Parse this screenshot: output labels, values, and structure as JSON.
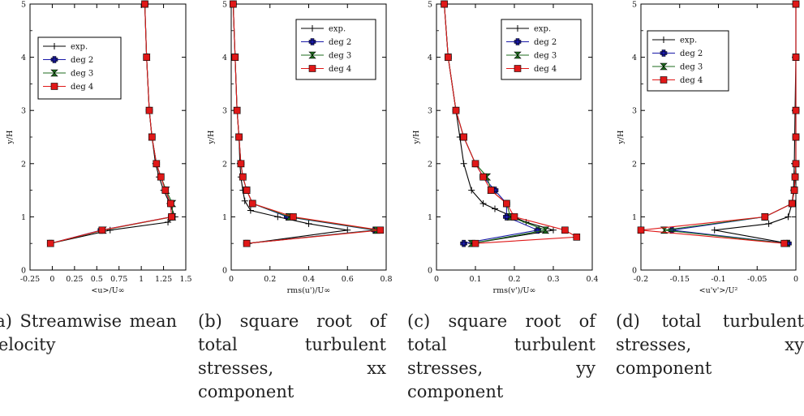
{
  "colors": {
    "exp": "#000000",
    "deg 2": "#1a1aa8",
    "deg 3": "#1c6b1c",
    "deg 4": "#e01818"
  },
  "markers": {
    "exp": "plus",
    "deg 2": "bluecross",
    "deg 3": "hourglass",
    "deg 4": "square"
  },
  "captions": [
    "(a) Streamwise mean velocity",
    "(b) square root of total turbulent stresses, xx component",
    "(c) square root of total turbulent stresses, yy component",
    "(d) total turbulent stresses, xy component"
  ],
  "chart_data": [
    {
      "type": "line",
      "xlabel": "<u>/U∞",
      "ylabel": "y/H",
      "xlim": [
        -0.25,
        1.5
      ],
      "ylim": [
        0,
        5
      ],
      "xticks": [
        "-0.25",
        "0",
        "0.25",
        "0.5",
        "0.75",
        "1",
        "1.25",
        "1.5"
      ],
      "yticks": [
        "0",
        "1",
        "2",
        "3",
        "4",
        "5"
      ],
      "legend": {
        "position": "top-left",
        "entries": [
          "exp.",
          "deg 2",
          "deg 3",
          "deg 4"
        ]
      },
      "series": [
        {
          "name": "exp.",
          "points": [
            [
              -0.02,
              0.5
            ],
            [
              0.65,
              0.75
            ],
            [
              1.3,
              0.9
            ],
            [
              1.38,
              1.0
            ],
            [
              1.32,
              1.25
            ],
            [
              1.25,
              1.5
            ],
            [
              1.2,
              1.75
            ],
            [
              1.16,
              2.0
            ],
            [
              1.12,
              2.5
            ],
            [
              1.09,
              3.0
            ],
            [
              1.06,
              4.0
            ],
            [
              1.04,
              5.0
            ]
          ]
        },
        {
          "name": "deg 2",
          "points": [
            [
              -0.02,
              0.5
            ],
            [
              0.55,
              0.75
            ],
            [
              1.34,
              1.0
            ],
            [
              1.33,
              1.25
            ],
            [
              1.27,
              1.5
            ],
            [
              1.22,
              1.75
            ],
            [
              1.17,
              2.0
            ],
            [
              1.12,
              2.5
            ],
            [
              1.09,
              3.0
            ],
            [
              1.06,
              4.0
            ],
            [
              1.04,
              5.0
            ]
          ]
        },
        {
          "name": "deg 3",
          "points": [
            [
              -0.02,
              0.5
            ],
            [
              0.57,
              0.75
            ],
            [
              1.35,
              1.0
            ],
            [
              1.35,
              1.25
            ],
            [
              1.28,
              1.5
            ],
            [
              1.22,
              1.75
            ],
            [
              1.17,
              2.0
            ],
            [
              1.12,
              2.5
            ],
            [
              1.09,
              3.0
            ],
            [
              1.06,
              4.0
            ],
            [
              1.04,
              5.0
            ]
          ]
        },
        {
          "name": "deg 4",
          "points": [
            [
              -0.02,
              0.5
            ],
            [
              0.56,
              0.75
            ],
            [
              1.34,
              1.0
            ],
            [
              1.33,
              1.25
            ],
            [
              1.27,
              1.5
            ],
            [
              1.22,
              1.75
            ],
            [
              1.17,
              2.0
            ],
            [
              1.12,
              2.5
            ],
            [
              1.09,
              3.0
            ],
            [
              1.06,
              4.0
            ],
            [
              1.04,
              5.0
            ]
          ]
        }
      ]
    },
    {
      "type": "line",
      "xlabel": "rms(u')/U∞",
      "ylabel": "y/H",
      "xlim": [
        0,
        0.8
      ],
      "ylim": [
        0,
        5
      ],
      "xticks": [
        "0",
        "0.2",
        "0.4",
        "0.6",
        "0.8"
      ],
      "yticks": [
        "0",
        "1",
        "2",
        "3",
        "4",
        "5"
      ],
      "legend": {
        "position": "top-right",
        "entries": [
          "exp.",
          "deg 2",
          "deg 3",
          "deg 4"
        ]
      },
      "series": [
        {
          "name": "exp.",
          "points": [
            [
              0.09,
              0.5
            ],
            [
              0.6,
              0.75
            ],
            [
              0.4,
              0.87
            ],
            [
              0.24,
              1.0
            ],
            [
              0.1,
              1.12
            ],
            [
              0.07,
              1.3
            ],
            [
              0.06,
              1.5
            ],
            [
              0.05,
              1.75
            ],
            [
              0.045,
              2.0
            ],
            [
              0.04,
              2.5
            ],
            [
              0.03,
              3.0
            ],
            [
              0.02,
              4.0
            ],
            [
              0.01,
              5.0
            ]
          ]
        },
        {
          "name": "deg 2",
          "points": [
            [
              0.08,
              0.5
            ],
            [
              0.74,
              0.75
            ],
            [
              0.29,
              1.0
            ],
            [
              0.11,
              1.25
            ],
            [
              0.08,
              1.5
            ],
            [
              0.06,
              1.75
            ],
            [
              0.05,
              2.0
            ],
            [
              0.04,
              2.5
            ],
            [
              0.03,
              3.0
            ],
            [
              0.02,
              4.0
            ],
            [
              0.01,
              5.0
            ]
          ]
        },
        {
          "name": "deg 3",
          "points": [
            [
              0.08,
              0.5
            ],
            [
              0.75,
              0.75
            ],
            [
              0.3,
              1.0
            ],
            [
              0.11,
              1.25
            ],
            [
              0.08,
              1.5
            ],
            [
              0.06,
              1.75
            ],
            [
              0.05,
              2.0
            ],
            [
              0.04,
              2.5
            ],
            [
              0.03,
              3.0
            ],
            [
              0.02,
              4.0
            ],
            [
              0.01,
              5.0
            ]
          ]
        },
        {
          "name": "deg 4",
          "points": [
            [
              0.08,
              0.5
            ],
            [
              0.77,
              0.75
            ],
            [
              0.32,
              1.0
            ],
            [
              0.11,
              1.25
            ],
            [
              0.08,
              1.5
            ],
            [
              0.06,
              1.75
            ],
            [
              0.05,
              2.0
            ],
            [
              0.04,
              2.5
            ],
            [
              0.03,
              3.0
            ],
            [
              0.02,
              4.0
            ],
            [
              0.01,
              5.0
            ]
          ]
        }
      ]
    },
    {
      "type": "line",
      "xlabel": "rms(v')/U∞",
      "ylabel": "y/H",
      "xlim": [
        0,
        0.4
      ],
      "ylim": [
        0,
        5
      ],
      "xticks": [
        "0",
        "0.1",
        "0.2",
        "0.3",
        "0.4"
      ],
      "yticks": [
        "0",
        "1",
        "2",
        "3",
        "4",
        "5"
      ],
      "legend": {
        "position": "top-right",
        "entries": [
          "exp.",
          "deg 2",
          "deg 3",
          "deg 4"
        ]
      },
      "series": [
        {
          "name": "exp.",
          "points": [
            [
              0.09,
              0.5
            ],
            [
              0.3,
              0.75
            ],
            [
              0.23,
              0.9
            ],
            [
              0.15,
              1.15
            ],
            [
              0.12,
              1.25
            ],
            [
              0.09,
              1.5
            ],
            [
              0.07,
              2.0
            ],
            [
              0.06,
              2.5
            ],
            [
              0.05,
              3.0
            ],
            [
              0.03,
              4.0
            ],
            [
              0.02,
              5.0
            ]
          ]
        },
        {
          "name": "deg 2",
          "points": [
            [
              0.07,
              0.5
            ],
            [
              0.26,
              0.75
            ],
            [
              0.18,
              1.0
            ],
            [
              0.18,
              1.25
            ],
            [
              0.15,
              1.5
            ],
            [
              0.12,
              1.75
            ],
            [
              0.1,
              2.0
            ],
            [
              0.07,
              2.5
            ],
            [
              0.05,
              3.0
            ],
            [
              0.03,
              4.0
            ],
            [
              0.02,
              5.0
            ]
          ]
        },
        {
          "name": "deg 3",
          "points": [
            [
              0.09,
              0.5
            ],
            [
              0.28,
              0.75
            ],
            [
              0.19,
              1.0
            ],
            [
              0.18,
              1.25
            ],
            [
              0.14,
              1.5
            ],
            [
              0.13,
              1.75
            ],
            [
              0.1,
              2.0
            ],
            [
              0.07,
              2.5
            ],
            [
              0.05,
              3.0
            ],
            [
              0.03,
              4.0
            ],
            [
              0.02,
              5.0
            ]
          ]
        },
        {
          "name": "deg 4",
          "points": [
            [
              0.1,
              0.5
            ],
            [
              0.36,
              0.62
            ],
            [
              0.33,
              0.75
            ],
            [
              0.2,
              1.0
            ],
            [
              0.18,
              1.25
            ],
            [
              0.14,
              1.5
            ],
            [
              0.12,
              1.75
            ],
            [
              0.1,
              2.0
            ],
            [
              0.07,
              2.5
            ],
            [
              0.05,
              3.0
            ],
            [
              0.03,
              4.0
            ],
            [
              0.02,
              5.0
            ]
          ]
        }
      ]
    },
    {
      "type": "line",
      "xlabel": "<u'v'>/U²",
      "ylabel": "y/H",
      "xlim": [
        -0.2,
        0
      ],
      "ylim": [
        0,
        5
      ],
      "xticks": [
        "-0.2",
        "-0.15",
        "-0.1",
        "-0.05",
        "0"
      ],
      "yticks": [
        "0",
        "1",
        "2",
        "3",
        "4",
        "5"
      ],
      "legend": {
        "position": "top-left",
        "entries": [
          "exp.",
          "deg 2",
          "deg 3",
          "deg 4"
        ]
      },
      "series": [
        {
          "name": "exp.",
          "points": [
            [
              -0.01,
              0.5
            ],
            [
              -0.105,
              0.75
            ],
            [
              -0.035,
              0.87
            ],
            [
              -0.01,
              1.0
            ],
            [
              -0.005,
              1.25
            ],
            [
              -0.003,
              1.5
            ],
            [
              -0.002,
              2.0
            ],
            [
              -0.001,
              3.0
            ],
            [
              0,
              4.0
            ],
            [
              0,
              5.0
            ]
          ]
        },
        {
          "name": "deg 2",
          "points": [
            [
              -0.01,
              0.5
            ],
            [
              -0.16,
              0.75
            ],
            [
              -0.04,
              1.0
            ],
            [
              -0.005,
              1.25
            ],
            [
              -0.002,
              1.5
            ],
            [
              -0.001,
              1.75
            ],
            [
              0,
              2.0
            ],
            [
              0,
              2.5
            ],
            [
              0,
              3.0
            ],
            [
              0,
              4.0
            ],
            [
              0,
              5.0
            ]
          ]
        },
        {
          "name": "deg 3",
          "points": [
            [
              -0.012,
              0.5
            ],
            [
              -0.17,
              0.75
            ],
            [
              -0.04,
              1.0
            ],
            [
              -0.005,
              1.25
            ],
            [
              -0.002,
              1.5
            ],
            [
              -0.001,
              1.75
            ],
            [
              0,
              2.0
            ],
            [
              0,
              2.5
            ],
            [
              0,
              3.0
            ],
            [
              0,
              4.0
            ],
            [
              0,
              5.0
            ]
          ]
        },
        {
          "name": "deg 4",
          "points": [
            [
              -0.015,
              0.5
            ],
            [
              -0.2,
              0.75
            ],
            [
              -0.04,
              1.0
            ],
            [
              -0.005,
              1.25
            ],
            [
              -0.002,
              1.5
            ],
            [
              -0.001,
              1.75
            ],
            [
              0,
              2.0
            ],
            [
              0,
              2.5
            ],
            [
              0,
              3.0
            ],
            [
              0,
              4.0
            ],
            [
              0,
              5.0
            ]
          ]
        }
      ]
    }
  ]
}
